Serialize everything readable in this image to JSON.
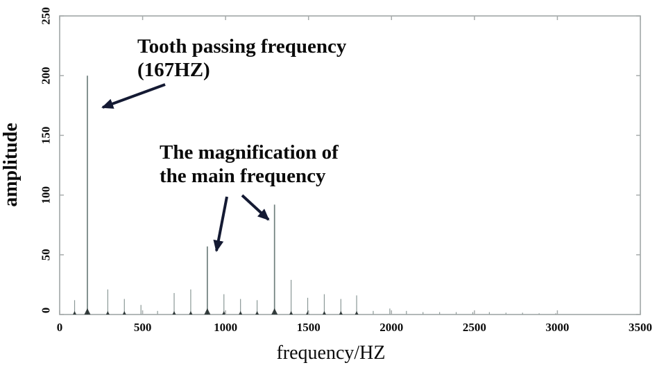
{
  "figure": {
    "background": "#ffffff",
    "axis_color": "#a6abab",
    "text_color": "#0b0b0b",
    "arrow_color": "#141a33",
    "peak_color": "#8a9896",
    "peak_color_strong": "#6e7e7c",
    "peak_base_color": "#232e2e"
  },
  "chart_data": {
    "type": "stem",
    "title": "",
    "xlabel": "frequency/HZ",
    "ylabel": "amplitude",
    "xlim": [
      0,
      3500
    ],
    "ylim": [
      0,
      250
    ],
    "x_ticks": [
      0,
      500,
      1000,
      1500,
      2000,
      2500,
      3000,
      3500
    ],
    "y_ticks": [
      0,
      50,
      100,
      150,
      200,
      250
    ],
    "grid": false,
    "legend": null,
    "tooth_passing_frequency_hz": 167,
    "tooth_passing_amplitude": 200,
    "magnified_main_frequencies_hz": [
      890,
      1295
    ],
    "peaks": [
      [
        90,
        12
      ],
      [
        167,
        200
      ],
      [
        290,
        21
      ],
      [
        390,
        13
      ],
      [
        490,
        8
      ],
      [
        590,
        3
      ],
      [
        690,
        18
      ],
      [
        790,
        21
      ],
      [
        890,
        57
      ],
      [
        990,
        17
      ],
      [
        1090,
        13
      ],
      [
        1190,
        12
      ],
      [
        1295,
        92
      ],
      [
        1395,
        29
      ],
      [
        1495,
        14
      ],
      [
        1595,
        17
      ],
      [
        1695,
        13
      ],
      [
        1790,
        16
      ],
      [
        1890,
        3
      ],
      [
        1990,
        5
      ],
      [
        2090,
        3
      ],
      [
        2190,
        2
      ],
      [
        2290,
        2
      ],
      [
        2390,
        2
      ],
      [
        2490,
        2
      ],
      [
        2590,
        2
      ],
      [
        2690,
        1.5
      ],
      [
        2790,
        1.5
      ],
      [
        2890,
        1
      ],
      [
        2990,
        1
      ]
    ],
    "annotations": {
      "tooth": {
        "line1": "Tooth passing frequency",
        "line2": "(167HZ)"
      },
      "magnification": {
        "line1": "The magnification of",
        "line2": "the main frequency"
      }
    }
  }
}
